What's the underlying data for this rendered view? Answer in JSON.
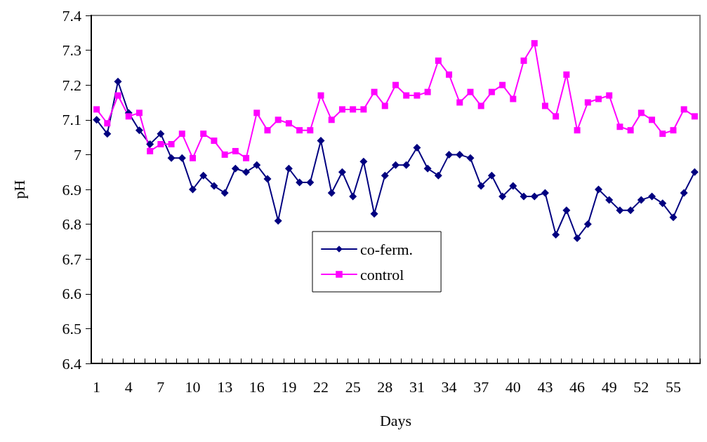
{
  "chart_data": {
    "type": "line",
    "xlabel": "Days",
    "ylabel": "pH",
    "categories": [
      "1",
      null,
      null,
      "4",
      null,
      null,
      "7",
      null,
      null,
      "10",
      null,
      null,
      "13",
      null,
      null,
      "16",
      null,
      null,
      "19",
      null,
      null,
      "22",
      null,
      null,
      "25",
      null,
      null,
      "28",
      null,
      null,
      "31",
      null,
      null,
      "34",
      null,
      null,
      "37",
      null,
      null,
      "40",
      null,
      null,
      "43",
      null,
      null,
      "46",
      null,
      null,
      "49",
      null,
      null,
      "52",
      null,
      null,
      "55",
      null,
      null
    ],
    "series": [
      {
        "name": "co-ferm.",
        "color": "#000080",
        "marker": "diamond",
        "values": [
          7.1,
          7.06,
          7.21,
          7.12,
          7.07,
          7.03,
          7.06,
          6.99,
          6.99,
          6.9,
          6.94,
          6.91,
          6.89,
          6.96,
          6.95,
          6.97,
          6.93,
          6.81,
          6.96,
          6.92,
          6.92,
          7.04,
          6.89,
          6.95,
          6.88,
          6.98,
          6.83,
          6.94,
          6.97,
          6.97,
          7.02,
          6.96,
          6.94,
          7.0,
          7.0,
          6.99,
          6.91,
          6.94,
          6.88,
          6.91,
          6.88,
          6.88,
          6.89,
          6.77,
          6.84,
          6.76,
          6.8,
          6.9,
          6.87,
          6.84,
          6.84,
          6.87,
          6.88,
          6.86,
          6.82,
          6.89,
          6.95
        ]
      },
      {
        "name": "control",
        "color": "#ff00ff",
        "marker": "square",
        "values": [
          7.13,
          7.09,
          7.17,
          7.11,
          7.12,
          7.01,
          7.03,
          7.03,
          7.06,
          6.99,
          7.06,
          7.04,
          7.0,
          7.01,
          6.99,
          7.12,
          7.07,
          7.1,
          7.09,
          7.07,
          7.07,
          7.17,
          7.1,
          7.13,
          7.13,
          7.13,
          7.18,
          7.14,
          7.2,
          7.17,
          7.17,
          7.18,
          7.27,
          7.23,
          7.15,
          7.18,
          7.14,
          7.18,
          7.2,
          7.16,
          7.27,
          7.32,
          7.14,
          7.11,
          7.23,
          7.07,
          7.15,
          7.16,
          7.17,
          7.08,
          7.07,
          7.12,
          7.1,
          7.06,
          7.07,
          7.13,
          7.11
        ]
      }
    ],
    "ylim": [
      6.4,
      7.4
    ],
    "yticks": [
      6.4,
      6.5,
      6.6,
      6.7,
      6.8,
      6.9,
      7,
      7.1,
      7.2,
      7.3,
      7.4
    ],
    "grid": false,
    "legend": "center",
    "line_style": "solid"
  }
}
